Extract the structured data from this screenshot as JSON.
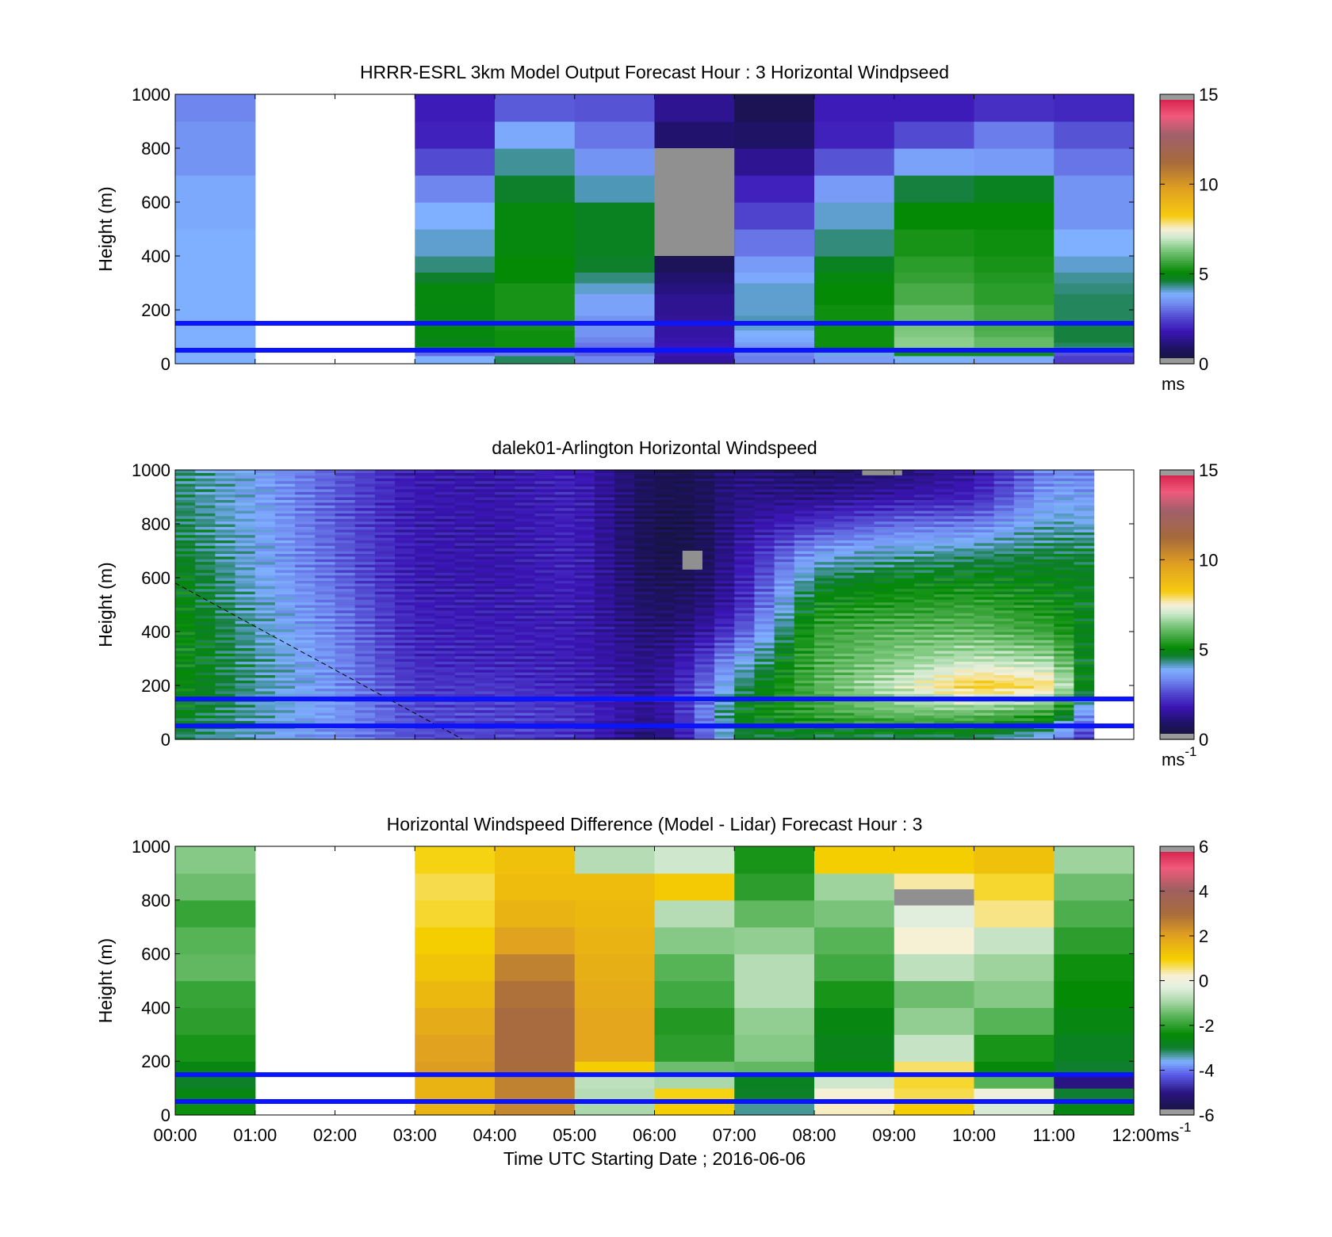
{
  "chart_data": [
    {
      "type": "heatmap",
      "title": "HRRR-ESRL 3km Model Output   Forecast Hour : 3 Horizontal Windpseed",
      "ylabel": "Height (m)",
      "xlabel": "",
      "ylim": [
        0,
        1000
      ],
      "y_ticks": [
        "0",
        "200",
        "400",
        "600",
        "800",
        "1000"
      ],
      "x_hours": [
        0,
        12
      ],
      "colorbar": {
        "ticks": [
          "0",
          "5",
          "10",
          "15"
        ],
        "range": [
          0,
          15
        ],
        "unit": "ms",
        "unit_sup": ""
      },
      "hlines": [
        150,
        50
      ],
      "y_edges": [
        0,
        30,
        50,
        65,
        80,
        100,
        125,
        150,
        180,
        220,
        260,
        300,
        340,
        400,
        500,
        600,
        700,
        800,
        900,
        1000
      ],
      "columns": [
        {
          "x0": 0,
          "x1": 1,
          "values": [
            3.9,
            3.9,
            3.9,
            3.9,
            3.9,
            3.9,
            3.9,
            3.9,
            3.9,
            3.9,
            3.9,
            3.9,
            3.9,
            3.9,
            3.8,
            3.8,
            3.5,
            3.5,
            3.3
          ]
        },
        {
          "x0": 3,
          "x1": 4,
          "values": [
            3.9,
            3.0,
            4.6,
            5.0,
            4.9,
            5.0,
            5.0,
            5.0,
            5.0,
            5.0,
            5.0,
            4.7,
            4.4,
            4.1,
            3.9,
            3.3,
            2.6,
            2.0,
            1.9
          ]
        },
        {
          "x0": 4,
          "x1": 5,
          "values": [
            4.5,
            3.2,
            5.2,
            5.2,
            5.2,
            5.2,
            5.3,
            5.3,
            5.3,
            5.3,
            5.3,
            5.1,
            5.1,
            5.0,
            5.0,
            4.7,
            4.3,
            3.8,
            2.8
          ]
        },
        {
          "x0": 5,
          "x1": 6,
          "values": [
            3.3,
            2.9,
            2.9,
            3.1,
            3.3,
            3.5,
            3.5,
            3.5,
            3.7,
            3.7,
            4.1,
            4.4,
            4.7,
            4.8,
            4.8,
            4.2,
            3.5,
            3.1,
            2.7
          ]
        },
        {
          "x0": 6,
          "x1": 7,
          "values": [
            1.6,
            1.8,
            1.8,
            1.8,
            1.7,
            1.6,
            1.6,
            1.5,
            1.4,
            1.4,
            1.2,
            1.0,
            0.7,
            0.1,
            0.1,
            0.1,
            0.1,
            1.0,
            1.4
          ]
        },
        {
          "x0": 7,
          "x1": 8,
          "values": [
            3.2,
            3.3,
            3.4,
            3.6,
            3.8,
            3.9,
            4.1,
            4.2,
            4.1,
            4.1,
            4.1,
            3.8,
            3.6,
            3.1,
            2.5,
            2.0,
            1.4,
            0.9,
            0.6
          ]
        },
        {
          "x0": 8,
          "x1": 9,
          "values": [
            3.6,
            4.0,
            5.0,
            5.2,
            5.2,
            5.2,
            5.2,
            5.2,
            5.2,
            5.1,
            5.1,
            5.0,
            4.8,
            4.4,
            4.1,
            3.6,
            2.7,
            2.0,
            1.9
          ]
        },
        {
          "x0": 9,
          "x1": 10,
          "values": [
            3.9,
            5.2,
            6.4,
            6.5,
            6.5,
            6.4,
            6.3,
            6.1,
            6.1,
            5.8,
            5.8,
            5.6,
            5.5,
            5.3,
            5.1,
            4.6,
            3.7,
            2.6,
            1.9
          ]
        },
        {
          "x0": 10,
          "x1": 11,
          "values": [
            3.8,
            5.2,
            6.1,
            6.1,
            6.1,
            5.9,
            5.8,
            5.7,
            5.7,
            5.5,
            5.5,
            5.4,
            5.3,
            5.2,
            5.1,
            4.8,
            3.6,
            3.2,
            2.2
          ]
        },
        {
          "x0": 11,
          "x1": 12,
          "values": [
            2.4,
            2.7,
            4.4,
            4.5,
            4.6,
            4.6,
            4.6,
            4.5,
            4.5,
            4.5,
            4.4,
            4.3,
            4.1,
            3.9,
            3.5,
            3.5,
            3.1,
            2.7,
            2.1
          ]
        }
      ],
      "missing": [
        {
          "x0": 6,
          "x1": 7,
          "y0": 400,
          "y1": 800
        }
      ]
    },
    {
      "type": "heatmap",
      "title": "dalek01-Arlington  Horizontal Windspeed",
      "ylabel": "Height (m)",
      "xlabel": "",
      "ylim": [
        0,
        1000
      ],
      "y_ticks": [
        "0",
        "200",
        "400",
        "600",
        "800",
        "1000"
      ],
      "x_hours": [
        0,
        12
      ],
      "colorbar": {
        "ticks": [
          "0",
          "5",
          "10",
          "15"
        ],
        "range": [
          0,
          15
        ],
        "unit": "ms",
        "unit_sup": "-1"
      },
      "hlines": [
        150,
        50
      ],
      "profile_step_hours": 0.25,
      "profile_end_hours": 11.5,
      "profile_knots_height": [
        0,
        100,
        200,
        300,
        400,
        500,
        600,
        700,
        800,
        900,
        1000
      ],
      "profile_knots": [
        {
          "t": 0.0,
          "v": [
            4.5,
            5.0,
            5.1,
            5.2,
            5.2,
            5.1,
            5.0,
            4.8,
            4.6,
            4.5,
            4.5
          ]
        },
        {
          "t": 1.0,
          "v": [
            4.0,
            4.2,
            4.3,
            4.3,
            4.2,
            4.1,
            4.0,
            3.9,
            3.9,
            3.8,
            3.8
          ]
        },
        {
          "t": 2.0,
          "v": [
            3.4,
            3.6,
            3.5,
            3.4,
            3.3,
            3.2,
            3.0,
            2.9,
            2.8,
            2.8,
            2.8
          ]
        },
        {
          "t": 3.0,
          "v": [
            2.6,
            2.6,
            2.3,
            2.1,
            2.0,
            1.9,
            1.8,
            1.8,
            1.8,
            1.8,
            1.8
          ]
        },
        {
          "t": 4.0,
          "v": [
            2.5,
            2.5,
            2.3,
            2.0,
            1.9,
            1.8,
            1.7,
            1.7,
            1.7,
            1.7,
            1.7
          ]
        },
        {
          "t": 5.0,
          "v": [
            2.2,
            2.3,
            2.0,
            1.9,
            1.9,
            1.9,
            2.0,
            2.0,
            2.0,
            2.0,
            2.0
          ]
        },
        {
          "t": 6.0,
          "v": [
            0.8,
            1.3,
            1.4,
            1.2,
            1.0,
            0.8,
            0.6,
            0.5,
            0.5,
            0.6,
            0.6
          ]
        },
        {
          "t": 6.5,
          "v": [
            2.2,
            2.7,
            2.5,
            2.0,
            1.4,
            1.0,
            0.7,
            0.5,
            0.5,
            0.6,
            0.6
          ]
        },
        {
          "t": 7.0,
          "v": [
            4.6,
            4.9,
            4.3,
            3.6,
            2.5,
            1.8,
            1.6,
            1.5,
            1.4,
            1.3,
            1.2
          ]
        },
        {
          "t": 8.0,
          "v": [
            4.6,
            5.6,
            5.9,
            5.8,
            5.6,
            5.2,
            4.5,
            3.6,
            2.3,
            1.3,
            0.9
          ]
        },
        {
          "t": 9.0,
          "v": [
            4.4,
            6.2,
            7.0,
            6.4,
            6.0,
            5.4,
            4.9,
            4.1,
            3.0,
            1.7,
            1.0
          ]
        },
        {
          "t": 10.0,
          "v": [
            4.4,
            6.2,
            8.3,
            6.9,
            6.1,
            5.6,
            5.0,
            4.3,
            3.2,
            2.0,
            1.6
          ]
        },
        {
          "t": 11.0,
          "v": [
            3.6,
            5.6,
            7.9,
            6.6,
            5.6,
            5.2,
            4.9,
            4.6,
            4.2,
            3.8,
            3.4
          ]
        },
        {
          "t": 11.5,
          "v": [
            1.8,
            3.0,
            4.0,
            4.3,
            4.6,
            4.8,
            4.8,
            4.6,
            4.0,
            3.6,
            3.2
          ]
        }
      ],
      "missing": [
        {
          "x0": 6.35,
          "x1": 6.6,
          "y0": 630,
          "y1": 700
        },
        {
          "x0": 8.6,
          "x1": 9.1,
          "y0": 980,
          "y1": 1000
        }
      ],
      "dashed_line": [
        {
          "t": 0.0,
          "h": 580
        },
        {
          "t": 3.6,
          "h": 0
        }
      ]
    },
    {
      "type": "heatmap",
      "title": "Horizontal Windspeed Difference (Model - Lidar) Forecast Hour : 3",
      "ylabel": "Height (m)",
      "xlabel": "Time UTC  Starting Date ; 2016-06-06",
      "ylim": [
        0,
        1000
      ],
      "y_ticks": [
        "0",
        "200",
        "400",
        "600",
        "800",
        "1000"
      ],
      "x_ticks": [
        "00:00",
        "01:00",
        "02:00",
        "03:00",
        "04:00",
        "05:00",
        "06:00",
        "07:00",
        "08:00",
        "09:00",
        "10:00",
        "11:00",
        "12:00"
      ],
      "x_hours": [
        0,
        12
      ],
      "colorbar": {
        "ticks": [
          "-6",
          "-4",
          "-2",
          "0",
          "2",
          "4",
          "6"
        ],
        "range": [
          -6,
          6
        ],
        "unit": "ms",
        "unit_sup": "-1"
      },
      "hlines": [
        150,
        50
      ],
      "y_edges": [
        0,
        50,
        100,
        150,
        200,
        300,
        400,
        500,
        600,
        700,
        800,
        900,
        1000
      ],
      "columns": [
        {
          "x0": 0,
          "x1": 1,
          "values": [
            -2.3,
            -2.6,
            -2.9,
            -2.6,
            -2.2,
            -2.0,
            -1.9,
            -1.5,
            -1.6,
            -1.9,
            -1.4,
            -1.2
          ]
        },
        {
          "x0": 3,
          "x1": 4,
          "values": [
            1.6,
            1.6,
            1.6,
            2.1,
            2.0,
            1.8,
            1.5,
            1.2,
            1.0,
            0.8,
            0.7,
            0.9
          ]
        },
        {
          "x0": 4,
          "x1": 5,
          "values": [
            2.5,
            2.6,
            2.6,
            3.0,
            3.1,
            3.1,
            2.9,
            2.6,
            2.0,
            1.6,
            1.4,
            1.3
          ]
        },
        {
          "x0": 5,
          "x1": 6,
          "values": [
            -0.9,
            -0.8,
            -0.7,
            1.0,
            1.9,
            1.9,
            1.8,
            1.7,
            1.6,
            1.5,
            1.4,
            -0.8
          ]
        },
        {
          "x0": 6,
          "x1": 7,
          "values": [
            1.0,
            0.9,
            -0.9,
            -1.4,
            -2.0,
            -2.1,
            -1.8,
            -1.6,
            -1.2,
            -0.8,
            1.1,
            -0.5
          ]
        },
        {
          "x0": 7,
          "x1": 8,
          "values": [
            -3.3,
            -2.9,
            -2.8,
            -1.5,
            -1.2,
            -1.1,
            -0.8,
            -0.8,
            -1.1,
            -1.5,
            -2.0,
            -2.2
          ]
        },
        {
          "x0": 8,
          "x1": 9,
          "values": [
            0.3,
            0.2,
            -0.5,
            -2.6,
            -2.7,
            -2.6,
            -2.2,
            -1.8,
            -1.6,
            -1.3,
            -1.0,
            1.0
          ]
        },
        {
          "x0": 9,
          "x1": 10,
          "values": [
            1.0,
            0.7,
            0.8,
            0.6,
            -0.6,
            -1.1,
            -1.4,
            -0.7,
            0.2,
            -0.3,
            0.4,
            1.0
          ]
        },
        {
          "x0": 10,
          "x1": 11,
          "values": [
            -0.4,
            0.0,
            -1.6,
            -2.5,
            -2.2,
            -1.6,
            -1.2,
            -1.0,
            -0.6,
            0.5,
            0.8,
            1.3
          ]
        },
        {
          "x0": 11,
          "x1": 12,
          "values": [
            -2.6,
            -3.0,
            -5.0,
            -3.0,
            -2.8,
            -2.6,
            -2.4,
            -2.3,
            -2.0,
            -1.7,
            -1.4,
            -1.0
          ]
        }
      ],
      "missing": [
        {
          "x0": 9,
          "x1": 10,
          "y0": 780,
          "y1": 840
        }
      ]
    }
  ]
}
